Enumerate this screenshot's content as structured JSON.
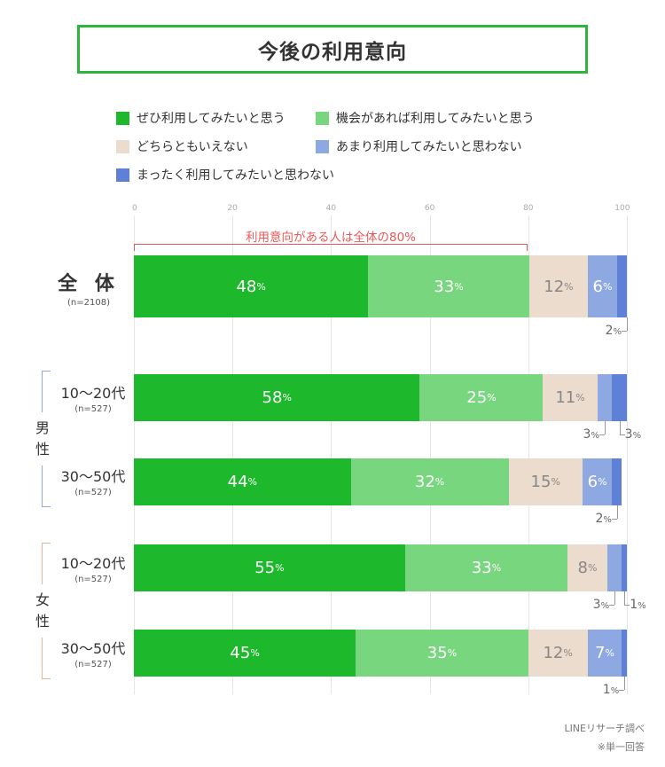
{
  "chart_data": {
    "type": "bar",
    "orientation": "horizontal-stacked-100",
    "title": "今後の利用意向",
    "axis_ticks": [
      "0",
      "20",
      "40",
      "60",
      "80",
      "100"
    ],
    "xlim": [
      0,
      100
    ],
    "annotation": "利用意向がある人は全体の80%",
    "annotation_range": [
      0,
      80
    ],
    "series": [
      {
        "name": "ぜひ利用してみたいと思う",
        "color": "#1db82b"
      },
      {
        "name": "機会があれば利用してみたいと思う",
        "color": "#78d67e"
      },
      {
        "name": "どちらともいえない",
        "color": "#ebdccd"
      },
      {
        "name": "あまり利用してみたいと思わない",
        "color": "#8ea8e2"
      },
      {
        "name": "まったく利用してみたいと思わない",
        "color": "#5e80d6"
      }
    ],
    "groups": [
      {
        "label": "",
        "rows": [
          0
        ]
      },
      {
        "label": "男\n性",
        "color": "#8fa9dc",
        "rows": [
          1,
          2
        ]
      },
      {
        "label": "女\n性",
        "color": "#e4b79a",
        "rows": [
          3,
          4
        ]
      }
    ],
    "rows": [
      {
        "label": "全 体",
        "n": "(n=2108)",
        "values": [
          48,
          33,
          12,
          6,
          2
        ],
        "labels": [
          "48",
          "33",
          "12",
          "6",
          "2"
        ]
      },
      {
        "label": "10〜20代",
        "n": "(n=527)",
        "values": [
          58,
          25,
          11,
          3,
          3
        ],
        "labels": [
          "58",
          "25",
          "11",
          "3",
          "3"
        ]
      },
      {
        "label": "30〜50代",
        "n": "(n=527)",
        "values": [
          44,
          32,
          15,
          6,
          2
        ],
        "labels": [
          "44",
          "32",
          "15",
          "6",
          "2"
        ]
      },
      {
        "label": "10〜20代",
        "n": "(n=527)",
        "values": [
          55,
          33,
          8,
          3,
          1
        ],
        "labels": [
          "55",
          "33",
          "8",
          "3",
          "1"
        ]
      },
      {
        "label": "30〜50代",
        "n": "(n=527)",
        "values": [
          45,
          35,
          12,
          7,
          1
        ],
        "labels": [
          "45",
          "35",
          "12",
          "7",
          "1"
        ]
      }
    ],
    "percent_unit": "%"
  },
  "source": {
    "line1": "LINEリサーチ調べ",
    "line2": "※単一回答"
  }
}
